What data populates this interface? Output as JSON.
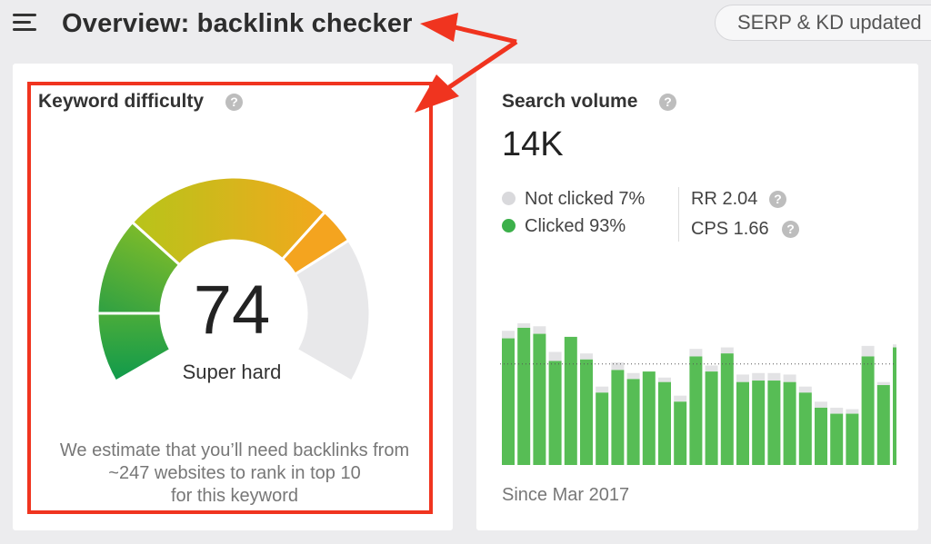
{
  "header": {
    "menu_icon": "hamburger-menu-icon",
    "title": "Overview: backlink checker",
    "status_pill": "SERP & KD updated"
  },
  "keyword_difficulty": {
    "title": "Keyword difficulty",
    "help_glyph": "?",
    "value": "74",
    "value_number": 74,
    "label": "Super hard",
    "note_line1": "We estimate that you’ll need backlinks from",
    "note_line2": "~247 websites to rank in top 10",
    "note_line3": "for this keyword",
    "colors": {
      "easy": "#1f9e4f",
      "medium": "#c9c81a",
      "hard": "#f4a41f",
      "empty": "#e8e8ea"
    }
  },
  "search_volume": {
    "title": "Search volume",
    "help_glyph": "?",
    "value": "14K",
    "not_clicked": "Not clicked 7%",
    "clicked": "Clicked 93%",
    "rr": "RR 2.04",
    "cps": "CPS 1.66",
    "since": "Since Mar 2017",
    "colors": {
      "clicked": "#57bd55",
      "not_clicked": "#e3e3e5"
    }
  },
  "chart_data": {
    "type": "bar",
    "stacked": true,
    "series": [
      {
        "values": [
          0.84,
          0.91,
          0.87,
          0.69,
          0.85,
          0.7,
          0.48,
          0.63,
          0.57,
          0.62,
          0.55,
          0.42,
          0.72,
          0.62,
          0.74,
          0.55,
          0.56,
          0.56,
          0.55,
          0.48,
          0.38,
          0.34,
          0.34,
          0.72,
          0.53,
          0.78
        ]
      },
      {
        "values": [
          0.05,
          0.03,
          0.05,
          0.06,
          0.0,
          0.04,
          0.04,
          0.05,
          0.04,
          0.0,
          0.03,
          0.04,
          0.05,
          0.04,
          0.04,
          0.05,
          0.05,
          0.05,
          0.05,
          0.04,
          0.04,
          0.04,
          0.03,
          0.07,
          0.02,
          0.02
        ]
      }
    ],
    "reference_line": 0.67,
    "ylim": [
      0,
      1
    ]
  },
  "annotation": {
    "arrow_color": "#f0341f"
  }
}
